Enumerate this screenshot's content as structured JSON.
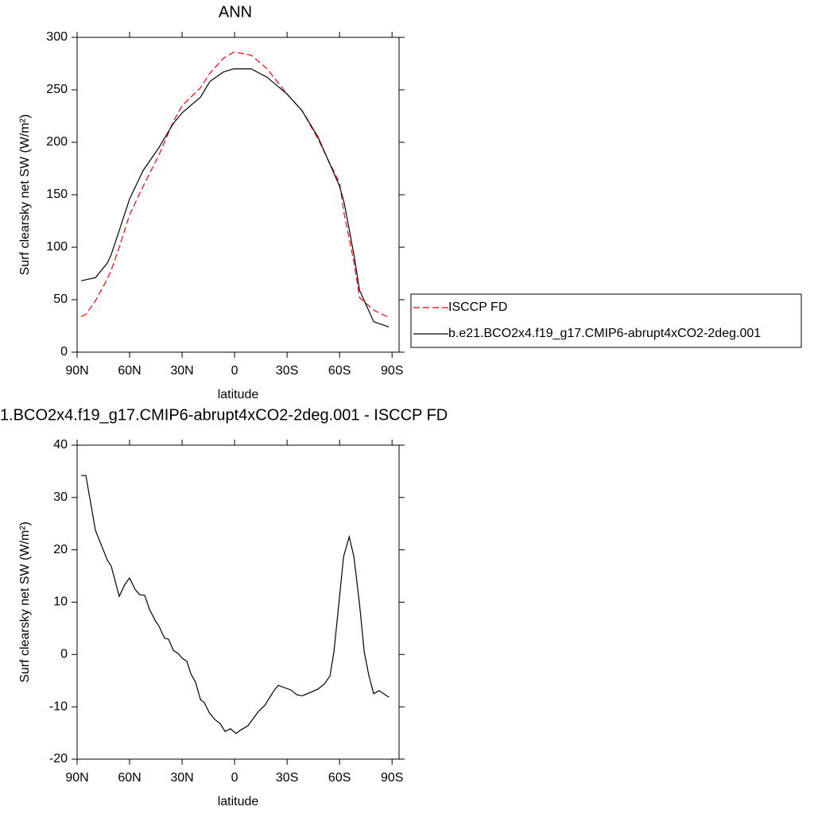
{
  "chart_data": [
    {
      "type": "line",
      "title": "ANN",
      "xlabel": "latitude",
      "ylabel": "Surf clearsky net SW (W/m²)",
      "x": [
        87.7,
        85,
        79.5,
        72.7,
        70.5,
        65.9,
        60,
        52.3,
        43.2,
        35,
        30,
        19.5,
        14.1,
        6.4,
        0.5,
        -9.5,
        -18.6,
        -30,
        -38.6,
        -47.7,
        -60,
        -62.7,
        -68.2,
        -71.4,
        -79.5,
        -88.2
      ],
      "series": [
        {
          "name": "ISCCP FD",
          "color": "#ff0000",
          "line_style": "dashed",
          "values": [
            34,
            36,
            49,
            70,
            78,
            100,
            131,
            158,
            188,
            220,
            235,
            252,
            266,
            280,
            286,
            283,
            270,
            246,
            230,
            203,
            161,
            131,
            86,
            52,
            40,
            33
          ]
        },
        {
          "name": "b.e21.BCO2x4.f19_g17.CMIP6-abrupt4xCO2-2deg.001",
          "color": "#000000",
          "line_style": "solid",
          "values": [
            68,
            69,
            71,
            85,
            93,
            116,
            146,
            173,
            195,
            218,
            228,
            243,
            258,
            267,
            270,
            270,
            262,
            246,
            230,
            205,
            158,
            142,
            93,
            59,
            29,
            24
          ]
        }
      ],
      "xlim": [
        90,
        -94
      ],
      "ylim": [
        0,
        300
      ],
      "xticks": [
        {
          "value": 90,
          "label": "90N"
        },
        {
          "value": 60,
          "label": "60N"
        },
        {
          "value": 30,
          "label": "30N"
        },
        0,
        {
          "value": -30,
          "label": "30S"
        },
        {
          "value": -60,
          "label": "60S"
        },
        {
          "value": -90,
          "label": "90S"
        }
      ],
      "yticks": [
        0,
        50,
        100,
        150,
        200,
        250,
        300
      ],
      "legend": "outside-right"
    },
    {
      "type": "line",
      "title": "1.BCO2x4.f19_g17.CMIP6-abrupt4xCO2-2deg.001 - ISCCP FD",
      "xlabel": "latitude",
      "ylabel": "Surf clearsky net SW (W/m²)",
      "x": [
        87.7,
        85,
        79.5,
        72.7,
        70.5,
        65.9,
        62.7,
        60,
        56.8,
        54.1,
        51.4,
        48.6,
        45.5,
        43.2,
        40,
        37.7,
        35,
        32.3,
        30,
        27.3,
        25,
        22.3,
        19.5,
        17.3,
        14.5,
        11.4,
        8.2,
        5.5,
        2.3,
        -0.9,
        -3.2,
        -7.7,
        -13.6,
        -17.3,
        -22.7,
        -25,
        -32.3,
        -35.5,
        -38.6,
        -44.5,
        -47.7,
        -51.4,
        -54.5,
        -56.8,
        -60,
        -62.3,
        -65.5,
        -68.2,
        -71.4,
        -74.1,
        -76.8,
        -79.5,
        -82.7,
        -88.2
      ],
      "series": [
        {
          "color": "#000000",
          "line_style": "solid",
          "values": [
            34.2,
            34.2,
            23.7,
            18,
            16.9,
            11.1,
            13.4,
            14.6,
            12.4,
            11.4,
            11.3,
            8.6,
            6.6,
            5.4,
            3.1,
            2.9,
            0.8,
            0.2,
            -0.7,
            -1.3,
            -3.7,
            -5.3,
            -8.6,
            -9.2,
            -11.1,
            -12.4,
            -13.2,
            -14.7,
            -14.2,
            -15.1,
            -14.5,
            -13.6,
            -10.9,
            -9.7,
            -6.8,
            -5.9,
            -6.8,
            -7.7,
            -7.9,
            -7.1,
            -6.6,
            -5.6,
            -4.1,
            0.5,
            11.1,
            18.7,
            22.5,
            18.7,
            9.6,
            0.5,
            -4.1,
            -7.5,
            -6.9,
            -8.2
          ]
        }
      ],
      "xlim": [
        90,
        -94
      ],
      "ylim": [
        -20,
        40
      ],
      "xticks": [
        {
          "value": 90,
          "label": "90N"
        },
        {
          "value": 60,
          "label": "60N"
        },
        {
          "value": 30,
          "label": "30N"
        },
        0,
        {
          "value": -30,
          "label": "30S"
        },
        {
          "value": -60,
          "label": "60S"
        },
        {
          "value": -90,
          "label": "90S"
        }
      ],
      "yticks": [
        -20,
        -10,
        0,
        10,
        20,
        30,
        40
      ]
    }
  ]
}
